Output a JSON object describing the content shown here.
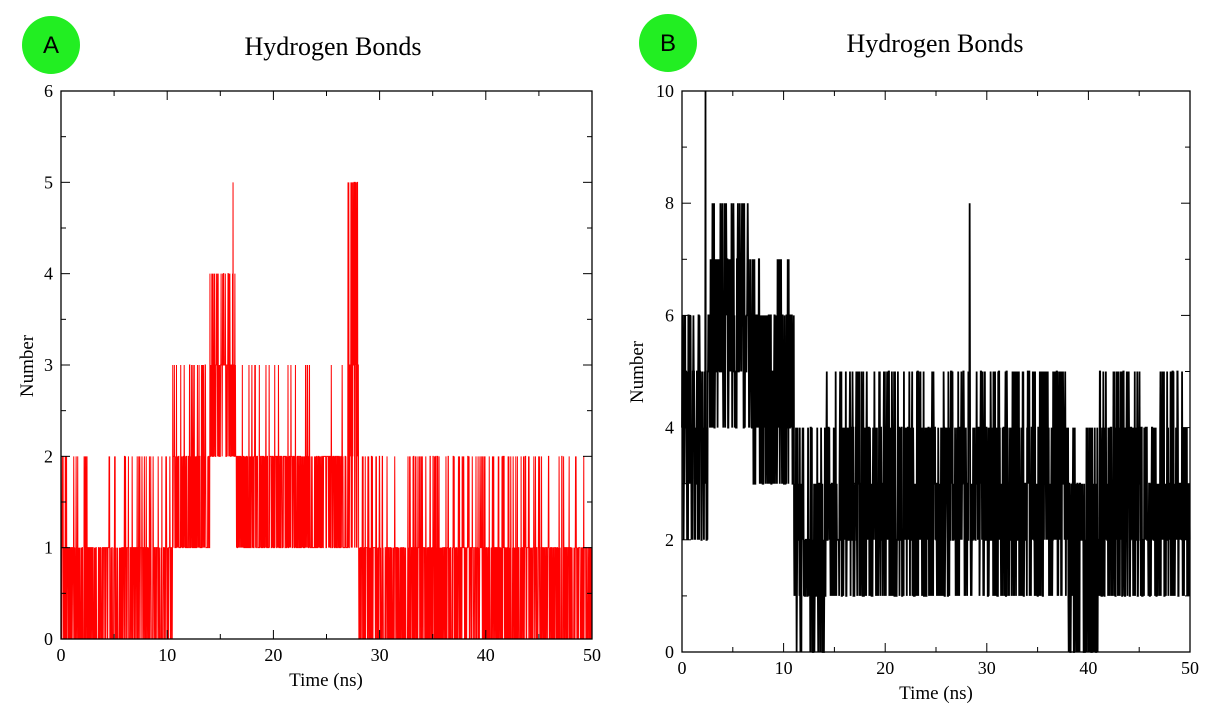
{
  "chart_data": [
    {
      "panel": "A",
      "type": "line",
      "title": "Hydrogen Bonds",
      "xlabel": "Time (ns)",
      "ylabel": "Number",
      "xlim": [
        0,
        50
      ],
      "ylim": [
        0,
        6
      ],
      "xticks": [
        0,
        10,
        20,
        30,
        40,
        50
      ],
      "yticks": [
        0,
        1,
        2,
        3,
        4,
        5,
        6
      ],
      "badge_color": "#22ee22",
      "series": [
        {
          "color": "#ff0000",
          "segments": [
            {
              "x0": 0,
              "x1": 10.5,
              "baseline": [
                0,
                1
              ],
              "occasional": 2,
              "rate": 0.1
            },
            {
              "x0": 10.5,
              "x1": 14,
              "baseline": [
                1,
                2
              ],
              "occasional": 3,
              "rate": 0.07
            },
            {
              "x0": 14,
              "x1": 16.5,
              "baseline": [
                2,
                3
              ],
              "occasional": 4,
              "rate": 0.12
            },
            {
              "x0": 16.5,
              "x1": 19,
              "baseline": [
                1,
                2
              ],
              "occasional": 3,
              "rate": 0.08
            },
            {
              "x0": 19,
              "x1": 22.5,
              "baseline": [
                1,
                2
              ],
              "occasional": 3,
              "rate": 0.06
            },
            {
              "x0": 22.5,
              "x1": 27,
              "baseline": [
                1,
                2
              ],
              "occasional": 3,
              "rate": 0.04
            },
            {
              "x0": 27,
              "x1": 28,
              "baseline": [
                1,
                3
              ],
              "occasional": 5,
              "rate": 0.25
            },
            {
              "x0": 28,
              "x1": 50,
              "baseline": [
                0,
                1
              ],
              "occasional": 2,
              "rate": 0.11
            }
          ],
          "peaks": [
            {
              "x": 16.2,
              "y": 5
            },
            {
              "x": 27.3,
              "y": 5
            },
            {
              "x": 27.5,
              "y": 5
            },
            {
              "x": 14.8,
              "y": 4
            },
            {
              "x": 15.3,
              "y": 4
            },
            {
              "x": 15.9,
              "y": 4
            }
          ]
        }
      ]
    },
    {
      "panel": "B",
      "type": "line",
      "title": "Hydrogen Bonds",
      "xlabel": "Time (ns)",
      "ylabel": "Number",
      "xlim": [
        0,
        50
      ],
      "ylim": [
        0,
        10
      ],
      "xticks": [
        0,
        10,
        20,
        30,
        40,
        50
      ],
      "yticks": [
        0,
        2,
        4,
        6,
        8,
        10
      ],
      "badge_color": "#22ee22",
      "series": [
        {
          "color": "#000000",
          "segments": [
            {
              "x0": 0,
              "x1": 2.5,
              "baseline": [
                2,
                5
              ],
              "occasional": 6,
              "rate": 0.2
            },
            {
              "x0": 2.5,
              "x1": 7,
              "baseline": [
                4,
                7
              ],
              "occasional": 8,
              "rate": 0.1
            },
            {
              "x0": 7,
              "x1": 11,
              "baseline": [
                3,
                6
              ],
              "occasional": 7,
              "rate": 0.08
            },
            {
              "x0": 11,
              "x1": 14,
              "baseline": [
                0,
                3
              ],
              "occasional": 4,
              "rate": 0.1
            },
            {
              "x0": 14,
              "x1": 24,
              "baseline": [
                1,
                4
              ],
              "occasional": 5,
              "rate": 0.1
            },
            {
              "x0": 24,
              "x1": 38,
              "baseline": [
                1,
                4
              ],
              "occasional": 5,
              "rate": 0.12
            },
            {
              "x0": 38,
              "x1": 41,
              "baseline": [
                0,
                3
              ],
              "occasional": 4,
              "rate": 0.1
            },
            {
              "x0": 41,
              "x1": 50,
              "baseline": [
                1,
                4
              ],
              "occasional": 5,
              "rate": 0.12
            }
          ],
          "peaks": [
            {
              "x": 2.3,
              "y": 10
            },
            {
              "x": 28.3,
              "y": 8
            },
            {
              "x": 3.0,
              "y": 8
            },
            {
              "x": 4.2,
              "y": 8
            },
            {
              "x": 5.5,
              "y": 8
            },
            {
              "x": 6.0,
              "y": 8
            }
          ]
        }
      ]
    }
  ]
}
